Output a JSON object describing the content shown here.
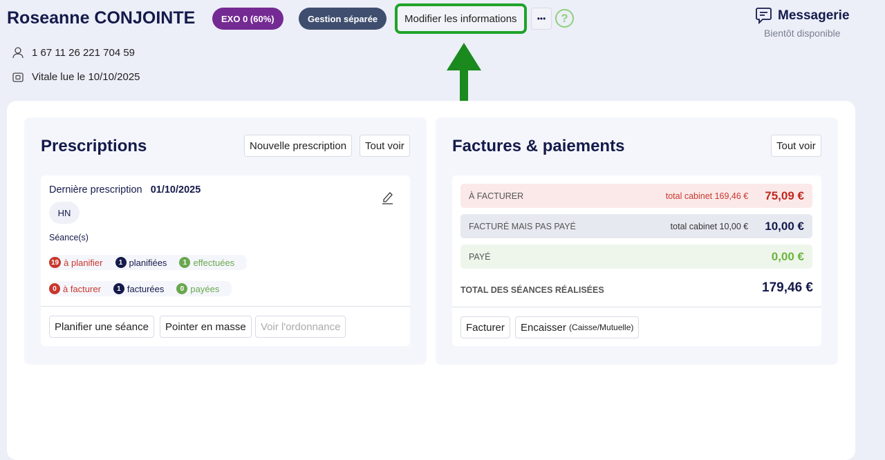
{
  "patient": {
    "name": "Roseanne CONJOINTE",
    "exo_badge": "EXO 0 (60%)",
    "gestion_badge": "Gestion séparée",
    "modify_button": "Modifier les informations",
    "more_button": "•••",
    "help_button": "?",
    "nir": "1 67 11 26 221 704 59",
    "vitale": "Vitale lue le 10/10/2025"
  },
  "messagerie": {
    "title": "Messagerie",
    "subtitle": "Bientôt disponible"
  },
  "prescriptions": {
    "title": "Prescriptions",
    "new_button": "Nouvelle prescription",
    "see_all": "Tout voir",
    "last_label": "Dernière prescription",
    "last_date": "01/10/2025",
    "tag": "HN",
    "sessions_label": "Séance(s)",
    "line1": [
      {
        "count": "19",
        "label": "à planifier",
        "color": "#c8372d"
      },
      {
        "count": "1",
        "label": "planifiées",
        "color": "#141a4a"
      },
      {
        "count": "1",
        "label": "effectuées",
        "color": "#6aa84f"
      }
    ],
    "line2": [
      {
        "count": "0",
        "label": "à facturer",
        "color": "#c8372d"
      },
      {
        "count": "1",
        "label": "facturées",
        "color": "#141a4a"
      },
      {
        "count": "0",
        "label": "payées",
        "color": "#6aa84f"
      }
    ],
    "actions": {
      "plan": "Planifier une séance",
      "pointer": "Pointer en masse",
      "ordonnance": "Voir l'ordonnance"
    }
  },
  "factures": {
    "title": "Factures & paiements",
    "see_all": "Tout voir",
    "rows": [
      {
        "label": "À FACTURER",
        "sub": "total cabinet 169,46 €",
        "amount": "75,09 €"
      },
      {
        "label": "FACTURÉ MAIS PAS PAYÉ",
        "sub": "total cabinet 10,00 €",
        "amount": "10,00 €"
      },
      {
        "label": "PAYÉ",
        "sub": "",
        "amount": "0,00 €"
      }
    ],
    "total_label": "TOTAL DES SÉANCES RÉALISÉES",
    "total_amount": "179,46 €",
    "facturer_button": "Facturer",
    "encaisser_button": "Encaisser",
    "encaisser_sub": "(Caisse/Mutuelle)"
  },
  "colors": {
    "exo": "#742a93",
    "gestion": "#3f4e6e",
    "highlight": "#1fa32a",
    "arrow": "#1a8a1e"
  }
}
